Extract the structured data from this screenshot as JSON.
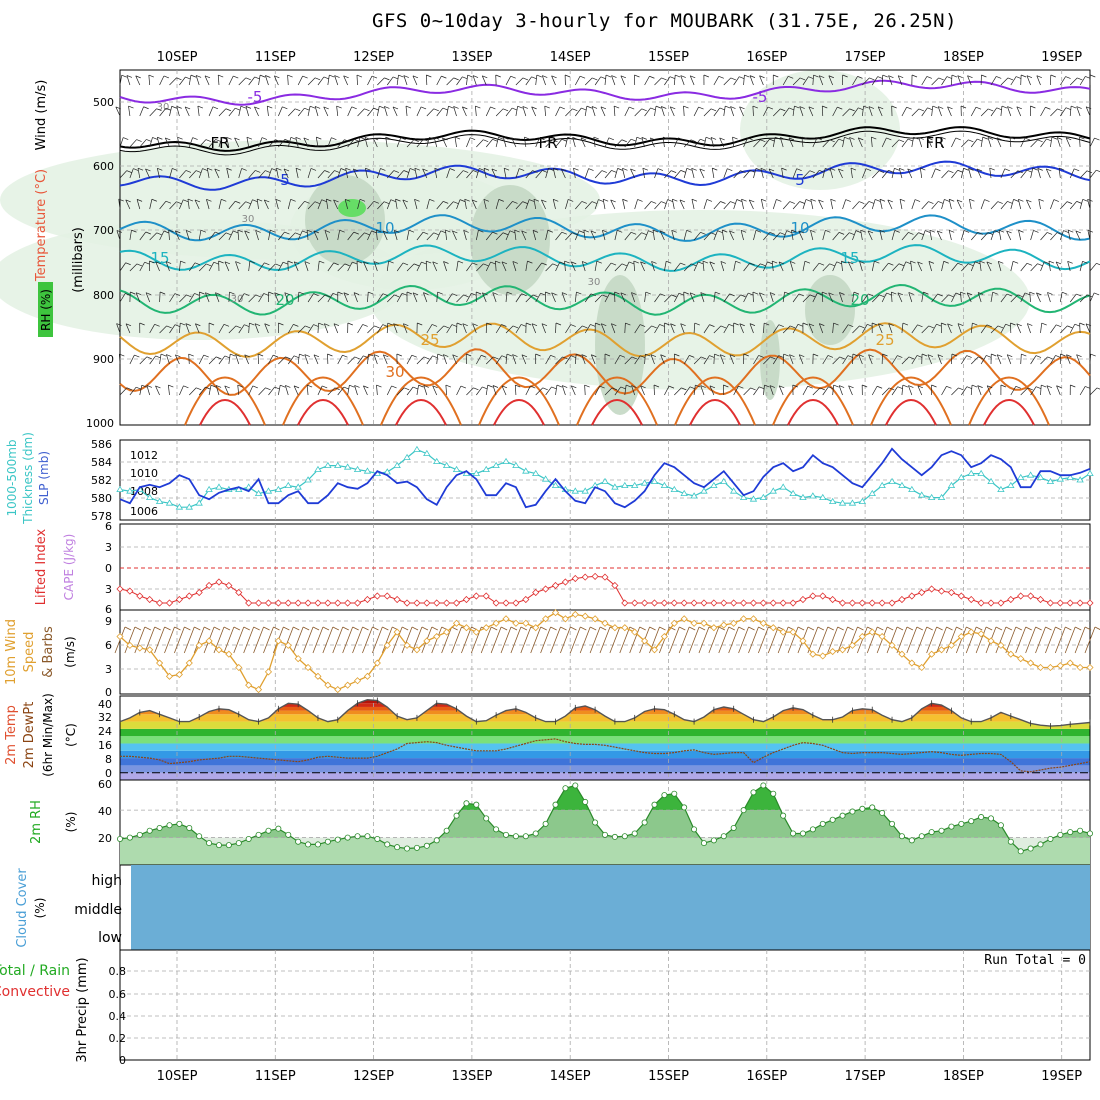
{
  "title": "GFS 0~10day 3-hourly for MOUBARK (31.75E, 26.25N)",
  "dates": [
    "10SEP",
    "11SEP",
    "12SEP",
    "13SEP",
    "14SEP",
    "15SEP",
    "16SEP",
    "17SEP",
    "18SEP",
    "19SEP"
  ],
  "colors": {
    "grid": "#aaaaaa",
    "slp": "#1f3bd6",
    "thick": "#3cc6c6",
    "lifted": "#e03030",
    "wind": "#e0a030",
    "rh2m": "#22aa22",
    "cloud": "#6baed6"
  },
  "chart_data": [
    {
      "type": "contour",
      "id": "upper-air",
      "ylabel_parts": [
        "RH (%)",
        "Temperature (°C)",
        "Wind (m/s)"
      ],
      "yunit": "(millibars)",
      "yticks": [
        "500",
        "600",
        "700",
        "800",
        "900",
        "1000"
      ],
      "ylim": [
        450,
        1000
      ],
      "isotherm_labels": [
        "-5",
        "-5",
        "FR",
        "FR",
        "FR",
        "5",
        "5",
        "10",
        "10",
        "15",
        "15",
        "20",
        "20",
        "25",
        "25",
        "30"
      ],
      "rh_labels": [
        "30",
        "30",
        "30",
        "30"
      ]
    },
    {
      "type": "line",
      "id": "slp-thickness",
      "ylabel_left": "1000-500mb Thickness (dm)",
      "ylabel_right": "SLP (mb)",
      "yticks_left": [
        "586",
        "584",
        "582",
        "580",
        "578"
      ],
      "yticks_right": [
        "1012",
        "1010",
        "1008",
        "1006"
      ],
      "series": [
        {
          "name": "SLP (mb)",
          "ylim": [
            1004.4,
            1014.4
          ],
          "values": [
            1007.0,
            1006.5,
            1008.5,
            1008.8,
            1008.5,
            1009.0,
            1010.0,
            1009.5,
            1007.5,
            1007.0,
            1007.8,
            1008.2,
            1008.5,
            1008.0,
            1009.5,
            1006.5,
            1006.5,
            1007.5,
            1008.0,
            1006.5,
            1006.5,
            1007.5,
            1009.0,
            1008.5,
            1008.3,
            1009.0,
            1010.5,
            1010.0,
            1009.0,
            1009.2,
            1008.5,
            1007.0,
            1006.3,
            1008.5,
            1010.0,
            1010.5,
            1009.5,
            1007.5,
            1007.5,
            1009.0,
            1008.5,
            1006.0,
            1006.3,
            1008.0,
            1009.5,
            1008.0,
            1006.8,
            1006.5,
            1008.5,
            1008.0,
            1006.5,
            1006.0,
            1006.8,
            1008.0,
            1010.0,
            1011.5,
            1011.0,
            1010.0,
            1009.0,
            1008.5,
            1009.5,
            1010.5,
            1009.0,
            1007.5,
            1008.0,
            1009.8,
            1011.0,
            1011.5,
            1010.5,
            1011.0,
            1012.5,
            1011.5,
            1011.0,
            1010.0,
            1009.0,
            1008.5,
            1010.0,
            1011.5,
            1013.3,
            1012.0,
            1011.0,
            1010.0,
            1011.0,
            1012.5,
            1013.0,
            1012.5,
            1011.0,
            1011.5,
            1012.5,
            1012.0,
            1011.0,
            1008.5,
            1008.5,
            1010.5,
            1010.5,
            1010.0,
            1010.0,
            1010.3,
            1010.8
          ]
        },
        {
          "name": "1000-500mb Thickness (dm)",
          "ylim": [
            576.2,
            586.2
          ],
          "values": [
            580.0,
            579.8,
            580.0,
            579.0,
            578.5,
            578.3,
            577.8,
            577.8,
            578.3,
            580.0,
            580.3,
            580.0,
            580.0,
            580.3,
            579.5,
            579.8,
            580.0,
            580.5,
            580.3,
            581.2,
            582.5,
            583.0,
            583.0,
            582.8,
            582.5,
            582.3,
            582.0,
            582.2,
            583.0,
            584.0,
            585.0,
            584.5,
            583.5,
            583.0,
            582.5,
            582.0,
            582.0,
            582.5,
            583.0,
            583.5,
            583.0,
            582.3,
            582.0,
            581.3,
            580.5,
            580.0,
            579.8,
            579.8,
            580.5,
            581.0,
            580.3,
            580.5,
            580.5,
            580.8,
            581.0,
            580.5,
            580.0,
            579.5,
            579.2,
            579.8,
            580.5,
            581.0,
            579.8,
            579.0,
            578.8,
            579.0,
            579.8,
            580.3,
            579.5,
            579.0,
            579.2,
            579.0,
            578.5,
            578.3,
            578.3,
            578.5,
            579.5,
            580.5,
            581.0,
            580.5,
            580.0,
            579.3,
            579.0,
            579.0,
            580.5,
            581.5,
            582.0,
            582.0,
            581.0,
            580.0,
            580.5,
            581.5,
            581.8,
            581.5,
            581.0,
            581.3,
            581.5,
            581.2,
            582.0
          ]
        }
      ]
    },
    {
      "type": "line",
      "id": "lifted-cape",
      "ylabel_left": "Lifted Index",
      "ylabel_right": "CAPE (J/kg)",
      "yticks": [
        "6",
        "3",
        "0",
        "3",
        "6"
      ],
      "ylim": [
        -6,
        6
      ],
      "series": [
        {
          "name": "Lifted Index",
          "values": [
            3.0,
            3.3,
            4.0,
            4.5,
            5.0,
            5.0,
            4.5,
            4.0,
            3.5,
            2.5,
            2.0,
            2.5,
            3.5,
            5.0,
            5.0,
            5.0,
            5.0,
            5.0,
            5.0,
            5.0,
            5.0,
            5.0,
            5.0,
            5.0,
            5.0,
            4.5,
            4.0,
            4.0,
            4.5,
            5.0,
            5.0,
            5.0,
            5.0,
            5.0,
            5.0,
            4.5,
            4.0,
            4.0,
            5.0,
            5.0,
            5.0,
            4.5,
            3.5,
            3.0,
            2.5,
            2.0,
            1.5,
            1.3,
            1.2,
            1.3,
            2.5,
            5.0,
            5.0,
            5.0,
            5.0,
            5.0,
            5.0,
            5.0,
            5.0,
            5.0,
            5.0,
            5.0,
            5.0,
            5.0,
            5.0,
            5.0,
            5.0,
            5.0,
            5.0,
            4.5,
            4.0,
            4.0,
            4.5,
            5.0,
            5.0,
            5.0,
            5.0,
            5.0,
            5.0,
            4.5,
            4.0,
            3.5,
            3.0,
            3.3,
            3.5,
            4.0,
            4.5,
            5.0,
            5.0,
            5.0,
            4.5,
            4.0,
            4.0,
            4.5,
            5.0,
            5.0,
            5.0,
            5.0,
            5.0
          ]
        }
      ]
    },
    {
      "type": "line",
      "id": "wind10m",
      "ylabel": "10m Wind Speed & Barbs",
      "yunit": "(m/s)",
      "yticks": [
        "9",
        "6",
        "3",
        "0"
      ],
      "ylim": [
        0,
        9.5
      ],
      "series": [
        {
          "name": "10m Wind Speed",
          "values": [
            6.5,
            5.5,
            5.2,
            5.0,
            3.5,
            2.0,
            2.2,
            3.5,
            5.5,
            6.0,
            5.0,
            4.5,
            3.0,
            1.0,
            0.5,
            2.5,
            6.0,
            5.5,
            4.0,
            3.0,
            2.0,
            1.0,
            0.5,
            1.0,
            1.5,
            2.0,
            3.5,
            5.5,
            7.0,
            5.5,
            5.0,
            6.0,
            6.5,
            7.0,
            8.0,
            7.5,
            7.0,
            7.5,
            8.0,
            8.5,
            8.0,
            8.0,
            7.5,
            8.5,
            9.2,
            8.5,
            9.0,
            8.8,
            8.5,
            8.0,
            7.5,
            7.5,
            7.0,
            6.0,
            5.0,
            6.5,
            8.0,
            8.5,
            8.0,
            8.0,
            7.5,
            7.8,
            8.0,
            8.5,
            8.5,
            8.0,
            7.5,
            7.0,
            7.0,
            6.0,
            4.5,
            4.3,
            4.8,
            5.0,
            5.5,
            6.5,
            7.0,
            6.5,
            5.5,
            4.5,
            3.5,
            3.0,
            4.5,
            5.0,
            5.5,
            6.5,
            7.0,
            6.8,
            6.0,
            5.5,
            4.5,
            4.0,
            3.5,
            3.0,
            3.0,
            3.2,
            3.5,
            3.0,
            3.0
          ]
        }
      ]
    },
    {
      "type": "area",
      "id": "temp2m",
      "ylabel_parts": [
        "2m Temp",
        "2m DewPt",
        "(6hr Min/Max)"
      ],
      "yunit": "(°C)",
      "yticks": [
        "40",
        "32",
        "24",
        "16",
        "8",
        "0"
      ],
      "ylim": [
        -4,
        42
      ],
      "series": [
        {
          "name": "2m Temp",
          "values": [
            28.0,
            30.0,
            33.0,
            34.0,
            32.0,
            30.0,
            28.0,
            28.0,
            30.5,
            33.5,
            35.0,
            34.5,
            32.0,
            29.0,
            28.0,
            30.0,
            35.0,
            38.0,
            37.5,
            34.0,
            30.0,
            28.0,
            29.0,
            34.0,
            38.0,
            40.0,
            39.5,
            36.0,
            31.0,
            29.0,
            30.0,
            34.0,
            38.0,
            37.5,
            35.0,
            31.0,
            28.0,
            28.5,
            31.5,
            34.0,
            35.0,
            33.0,
            30.0,
            28.0,
            28.0,
            31.0,
            35.5,
            36.5,
            34.5,
            31.0,
            28.0,
            28.0,
            30.0,
            33.5,
            35.0,
            34.5,
            32.0,
            29.0,
            28.0,
            30.5,
            34.5,
            36.0,
            35.0,
            32.0,
            29.0,
            28.0,
            30.5,
            34.0,
            35.5,
            34.5,
            31.5,
            29.0,
            29.0,
            30.5,
            34.0,
            35.0,
            34.5,
            31.5,
            29.0,
            28.0,
            30.0,
            35.0,
            38.0,
            37.0,
            34.0,
            30.0,
            28.0,
            28.0,
            30.0,
            33.0,
            31.0,
            29.0,
            27.0,
            26.0,
            25.5,
            25.8,
            26.5,
            27.0,
            27.5
          ]
        },
        {
          "name": "2m DewPt",
          "values": [
            9.0,
            9.0,
            8.5,
            8.0,
            7.0,
            5.0,
            5.5,
            6.0,
            7.0,
            7.5,
            8.0,
            9.0,
            9.0,
            8.5,
            8.0,
            7.5,
            7.0,
            6.5,
            6.0,
            7.0,
            8.5,
            9.0,
            8.5,
            8.0,
            8.0,
            8.0,
            9.0,
            11.0,
            13.0,
            16.0,
            16.5,
            17.0,
            16.5,
            15.0,
            14.0,
            13.0,
            12.0,
            12.0,
            12.0,
            13.0,
            14.5,
            16.0,
            17.5,
            18.0,
            18.5,
            17.0,
            16.0,
            15.5,
            15.5,
            15.0,
            14.0,
            13.0,
            12.0,
            11.0,
            10.5,
            10.5,
            11.0,
            12.0,
            12.5,
            11.0,
            10.0,
            10.5,
            11.0,
            11.0,
            5.5,
            8.5,
            11.0,
            13.0,
            15.0,
            16.5,
            16.0,
            15.0,
            13.0,
            11.0,
            10.5,
            11.0,
            11.0,
            11.0,
            10.5,
            10.0,
            10.5,
            11.0,
            11.5,
            11.0,
            10.0,
            9.5,
            10.0,
            10.5,
            10.5,
            10.0,
            6.0,
            1.0,
            0.5,
            1.5,
            2.5,
            3.0,
            4.0,
            5.0,
            6.0
          ]
        }
      ]
    },
    {
      "type": "area",
      "id": "rh2m",
      "ylabel": "2m RH",
      "yunit": "(%)",
      "yticks": [
        "60",
        "40",
        "20"
      ],
      "ylim": [
        0,
        62
      ],
      "series": [
        {
          "name": "2m RH",
          "values": [
            19.0,
            20.0,
            22.0,
            25.0,
            27.0,
            29.0,
            30.0,
            27.0,
            21.0,
            16.0,
            14.5,
            14.5,
            16.0,
            19.0,
            22.0,
            25.0,
            26.5,
            22.0,
            17.0,
            15.0,
            15.0,
            17.0,
            18.5,
            20.0,
            21.0,
            21.0,
            19.0,
            15.0,
            13.0,
            12.0,
            12.5,
            14.0,
            18.0,
            25.0,
            36.0,
            45.0,
            44.0,
            34.0,
            26.0,
            22.0,
            21.0,
            21.0,
            23.0,
            30.0,
            44.0,
            56.0,
            58.0,
            46.0,
            31.0,
            22.0,
            20.5,
            21.0,
            23.0,
            31.0,
            44.0,
            51.0,
            52.0,
            42.0,
            26.0,
            16.0,
            18.0,
            21.0,
            27.0,
            40.0,
            53.0,
            58.0,
            52.0,
            36.0,
            23.0,
            23.0,
            26.0,
            30.0,
            33.0,
            36.0,
            39.0,
            41.0,
            42.0,
            38.0,
            30.0,
            21.0,
            18.0,
            21.0,
            24.0,
            25.0,
            28.0,
            30.0,
            32.0,
            35.0,
            34.0,
            29.0,
            17.0,
            10.0,
            12.0,
            15.0,
            19.0,
            22.0,
            24.0,
            25.0,
            23.0
          ]
        }
      ]
    },
    {
      "type": "bar",
      "id": "cloud-cover",
      "ylabel": "Cloud Cover",
      "yunit": "(%)",
      "levels": [
        "high",
        "middle",
        "low"
      ]
    },
    {
      "type": "bar",
      "id": "precip",
      "ylabel_parts": [
        "Total / Rain",
        "Convective"
      ],
      "ylabel": "3hr Precip (mm)",
      "yticks": [
        "0.8",
        "0.6",
        "0.4",
        "0.2",
        "0"
      ],
      "ylim": [
        0,
        1.0
      ],
      "run_total_label": "Run Total = 0",
      "values": []
    }
  ]
}
